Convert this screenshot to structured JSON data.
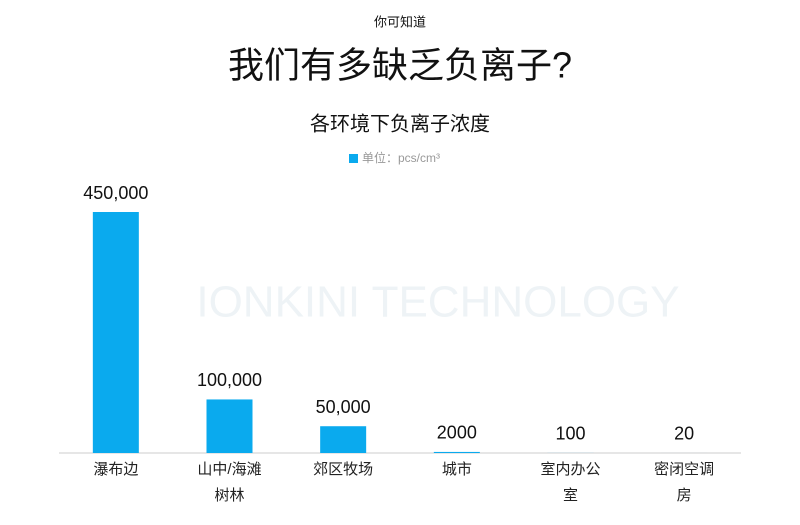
{
  "chart_data": {
    "type": "bar",
    "supertitle": "你可知道",
    "title": "我们有多缺乏负离子?",
    "subtitle": "各环境下负离子浓度",
    "watermark": "IONKINI TECHNOLOGY",
    "categories": [
      "瀑布边",
      "山中/海滩树林",
      "郊区牧场",
      "城市",
      "室内办公室",
      "密闭空调房"
    ],
    "series": [
      {
        "name": "单位：pcs/cm³",
        "color": "#0aaaee",
        "values": [
          450000,
          100000,
          50000,
          2000,
          100,
          20
        ],
        "value_labels": [
          "450,000",
          "100,000",
          "50,000",
          "2000",
          "100",
          "20"
        ]
      }
    ]
  }
}
